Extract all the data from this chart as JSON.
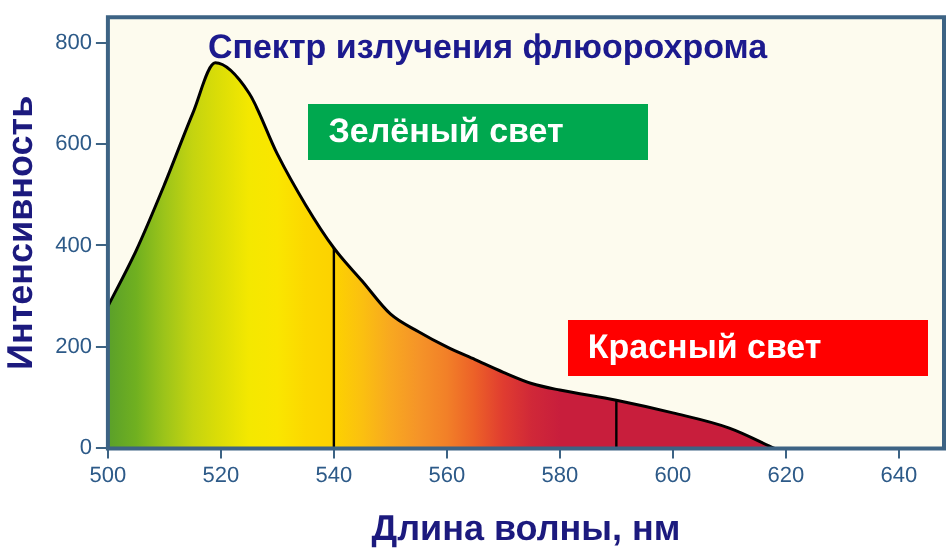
{
  "chart_data": {
    "type": "area",
    "title": "Спектр излучения флюорохрома",
    "xlabel": "Длина волны, нм",
    "ylabel": "Интенсивность",
    "annotations": [
      "Зелёный свет",
      "Красный свет"
    ],
    "x": [
      500,
      505,
      510,
      515,
      519,
      525,
      530,
      535,
      540,
      545,
      550,
      555,
      560,
      565,
      570,
      575,
      580,
      590,
      600,
      610,
      618
    ],
    "series": [
      {
        "color": "#000000",
        "values": [
          280,
          390,
          520,
          660,
          760,
          700,
          580,
          480,
          395,
          330,
          265,
          230,
          200,
          175,
          150,
          128,
          115,
          95,
          70,
          40,
          0
        ],
        "colors": [
          "#5aa02a",
          "#70b020",
          "#9cc41a",
          "#c4d410",
          "#d8dc08",
          "#f4e800",
          "#fae600",
          "#fcd800",
          "#fcd200",
          "#fbc010",
          "#f8a820",
          "#f59428",
          "#f28028",
          "#ec6028",
          "#e03c30",
          "#d02838",
          "#c81e3c",
          "#c81e3c",
          "#c81e3c",
          "#c81e3c",
          "#c81e3c"
        ]
      }
    ],
    "xlim": [
      500,
      648
    ],
    "xticks": [
      500,
      520,
      540,
      560,
      580,
      600,
      620,
      640
    ],
    "ylim": [
      0,
      850
    ],
    "yticks": [
      0,
      200,
      400,
      600,
      800
    ],
    "ref_lines": [
      {
        "axis": "x",
        "value": 540,
        "color": "#000000"
      },
      {
        "axis": "x",
        "value": 590,
        "color": "#000000"
      }
    ],
    "grid": false,
    "legend": false,
    "marker": "none",
    "line_style": "solid"
  }
}
